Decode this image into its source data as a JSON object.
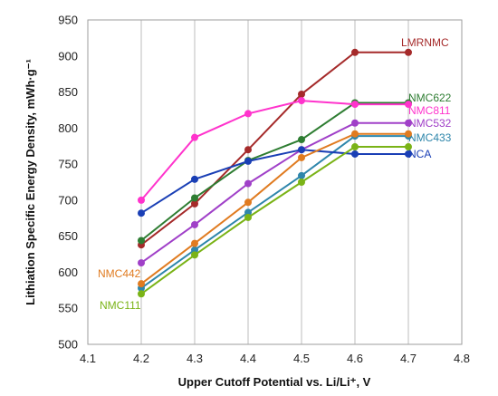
{
  "chart_data": {
    "type": "line",
    "xlabel": "Upper Cutoff Potential vs. Li/Li⁺, V",
    "ylabel": "Lithiation Specific Energy Density, mWh·g⁻¹",
    "xlim": [
      4.1,
      4.8
    ],
    "ylim": [
      500,
      950
    ],
    "xticks": [
      "4.1",
      "4.2",
      "4.3",
      "4.4",
      "4.5",
      "4.6",
      "4.7",
      "4.8"
    ],
    "yticks": [
      "500",
      "550",
      "600",
      "650",
      "700",
      "750",
      "800",
      "850",
      "900",
      "950"
    ],
    "grid": "vertical",
    "legend": "inline labels at line ends",
    "series": [
      {
        "name": "LMRNMC",
        "color": "#a52a2a",
        "x": [
          4.2,
          4.3,
          4.4,
          4.5,
          4.6,
          4.7
        ],
        "values": [
          638,
          695,
          770,
          847,
          905,
          905
        ]
      },
      {
        "name": "NMC622",
        "color": "#2e7d32",
        "x": [
          4.2,
          4.3,
          4.4,
          4.5,
          4.6,
          4.7
        ],
        "values": [
          644,
          703,
          755,
          784,
          835,
          835
        ]
      },
      {
        "name": "NMC811",
        "color": "#ff33cc",
        "x": [
          4.2,
          4.3,
          4.4,
          4.5,
          4.6,
          4.7
        ],
        "values": [
          700,
          787,
          820,
          838,
          833,
          833
        ]
      },
      {
        "name": "NMC532",
        "color": "#a040c8",
        "x": [
          4.2,
          4.3,
          4.4,
          4.5,
          4.6,
          4.7
        ],
        "values": [
          613,
          666,
          723,
          770,
          807,
          807
        ]
      },
      {
        "name": "NMC433",
        "color": "#2e86ab",
        "x": [
          4.2,
          4.3,
          4.4,
          4.5,
          4.6,
          4.7
        ],
        "values": [
          578,
          631,
          683,
          734,
          789,
          789
        ]
      },
      {
        "name": "NCA",
        "color": "#1a3fb5",
        "x": [
          4.2,
          4.3,
          4.4,
          4.5,
          4.6,
          4.7
        ],
        "values": [
          682,
          729,
          754,
          770,
          764,
          764
        ]
      },
      {
        "name": "NMC442",
        "color": "#e07b20",
        "x": [
          4.2,
          4.3,
          4.4,
          4.5,
          4.6,
          4.7
        ],
        "values": [
          584,
          640,
          697,
          759,
          792,
          792
        ]
      },
      {
        "name": "NMC111",
        "color": "#7ab317",
        "x": [
          4.2,
          4.3,
          4.4,
          4.5,
          4.6,
          4.7
        ],
        "values": [
          570,
          624,
          676,
          725,
          774,
          774
        ]
      }
    ]
  }
}
